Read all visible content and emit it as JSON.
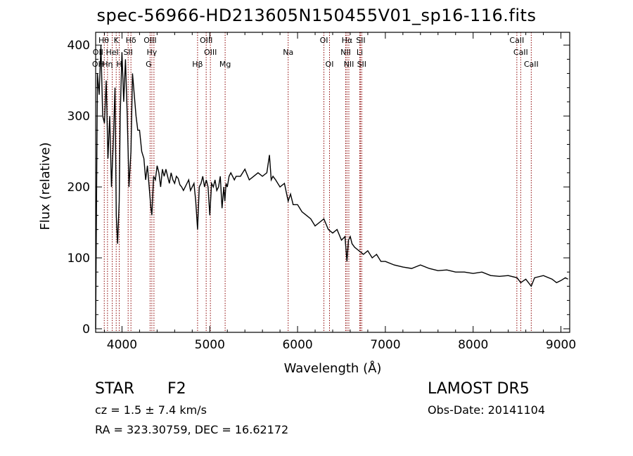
{
  "chart_data": {
    "type": "line",
    "title": "spec-56966-HD213605N150455V01_sp16-116.fits",
    "xlabel": "Wavelength (Å)",
    "ylabel": "Flux (relative)",
    "xlim": [
      3700,
      9100
    ],
    "ylim": [
      -5,
      418
    ],
    "xticks": [
      "4000",
      "5000",
      "6000",
      "7000",
      "8000",
      "9000"
    ],
    "yticks": [
      "0",
      "100",
      "200",
      "300",
      "400"
    ],
    "series": [
      {
        "x": [
          3700,
          3720,
          3740,
          3760,
          3780,
          3800,
          3820,
          3840,
          3860,
          3880,
          3900,
          3920,
          3935,
          3950,
          3968,
          3980,
          4000,
          4020,
          4040,
          4060,
          4080,
          4102,
          4120,
          4140,
          4160,
          4180,
          4200,
          4225,
          4250,
          4270,
          4290,
          4310,
          4330,
          4340,
          4360,
          4380,
          4400,
          4420,
          4440,
          4460,
          4480,
          4500,
          4520,
          4540,
          4560,
          4580,
          4600,
          4620,
          4640,
          4660,
          4680,
          4700,
          4720,
          4740,
          4760,
          4780,
          4800,
          4820,
          4840,
          4861,
          4880,
          4900,
          4920,
          4940,
          4960,
          4980,
          5000,
          5020,
          5040,
          5060,
          5080,
          5100,
          5120,
          5140,
          5160,
          5172,
          5185,
          5200,
          5220,
          5240,
          5260,
          5280,
          5300,
          5350,
          5400,
          5450,
          5500,
          5550,
          5600,
          5650,
          5680,
          5700,
          5720,
          5750,
          5800,
          5850,
          5893,
          5920,
          5950,
          6000,
          6050,
          6100,
          6150,
          6200,
          6250,
          6300,
          6350,
          6400,
          6450,
          6500,
          6540,
          6563,
          6580,
          6600,
          6620,
          6650,
          6700,
          6750,
          6800,
          6850,
          6900,
          6950,
          7000,
          7100,
          7200,
          7300,
          7400,
          7500,
          7600,
          7700,
          7800,
          7900,
          8000,
          8100,
          8200,
          8300,
          8400,
          8500,
          8542,
          8600,
          8662,
          8700,
          8800,
          8900,
          8950,
          9000,
          9050,
          9080
        ],
        "y": [
          0,
          360,
          330,
          400,
          300,
          290,
          350,
          240,
          300,
          200,
          260,
          340,
          160,
          120,
          180,
          300,
          390,
          320,
          380,
          300,
          200,
          250,
          360,
          330,
          300,
          280,
          280,
          250,
          240,
          210,
          230,
          200,
          170,
          160,
          215,
          210,
          230,
          220,
          200,
          225,
          215,
          225,
          215,
          205,
          220,
          210,
          205,
          215,
          212,
          203,
          200,
          195,
          200,
          205,
          210,
          195,
          200,
          205,
          180,
          140,
          200,
          205,
          215,
          200,
          210,
          200,
          160,
          205,
          200,
          210,
          195,
          200,
          215,
          170,
          200,
          180,
          205,
          200,
          215,
          220,
          215,
          210,
          215,
          215,
          225,
          210,
          215,
          220,
          215,
          220,
          245,
          210,
          215,
          210,
          200,
          205,
          180,
          190,
          175,
          175,
          165,
          160,
          155,
          145,
          150,
          155,
          140,
          135,
          140,
          125,
          130,
          95,
          125,
          130,
          120,
          115,
          110,
          105,
          110,
          100,
          105,
          95,
          95,
          90,
          87,
          85,
          90,
          85,
          82,
          83,
          80,
          80,
          78,
          80,
          75,
          74,
          75,
          72,
          65,
          70,
          60,
          72,
          75,
          70,
          65,
          68,
          72,
          70
        ]
      }
    ],
    "lines": [
      {
        "name": "Hθ",
        "x": 3798
      },
      {
        "name": "Hη",
        "x": 3835
      },
      {
        "name": "HeI",
        "x": 3889
      },
      {
        "name": "K",
        "x": 3934
      },
      {
        "name": "H",
        "x": 3969
      },
      {
        "name": "SII",
        "x": 4070
      },
      {
        "name": "Hδ",
        "x": 4102
      },
      {
        "name": "OIII",
        "x": 4320
      },
      {
        "name": "Hγ",
        "x": 4340
      },
      {
        "name": "G",
        "x": 4364
      },
      {
        "name": "Hβ",
        "x": 4861
      },
      {
        "name": "OIII",
        "x": 4959
      },
      {
        "name": "OIII",
        "x": 5007
      },
      {
        "name": "Mg",
        "x": 5175
      },
      {
        "name": "Na",
        "x": 5893
      },
      {
        "name": "OI",
        "x": 6300
      },
      {
        "name": "OI",
        "x": 6364
      },
      {
        "name": "Hα",
        "x": 6563
      },
      {
        "name": "NII",
        "x": 6548
      },
      {
        "name": "NII",
        "x": 6584
      },
      {
        "name": "SII",
        "x": 6717
      },
      {
        "name": "SII",
        "x": 6731
      },
      {
        "name": "Li",
        "x": 6708
      },
      {
        "name": "CaII",
        "x": 8498
      },
      {
        "name": "CaII",
        "x": 8542
      },
      {
        "name": "CaII",
        "x": 8662
      }
    ],
    "line_labels": [
      {
        "text": "Hθ",
        "row": 0,
        "x": 3792
      },
      {
        "text": "K",
        "row": 0,
        "x": 3934
      },
      {
        "text": "Hδ",
        "row": 0,
        "x": 4102
      },
      {
        "text": "OIII",
        "row": 0,
        "x": 4320
      },
      {
        "text": "OIII",
        "row": 0,
        "x": 4959
      },
      {
        "text": "OI",
        "row": 0,
        "x": 6300
      },
      {
        "text": "Hα",
        "row": 0,
        "x": 6563
      },
      {
        "text": "SII",
        "row": 0,
        "x": 6720
      },
      {
        "text": "CaII",
        "row": 0,
        "x": 8498
      },
      {
        "text": "OII",
        "row": 1,
        "x": 3727
      },
      {
        "text": "HeI",
        "row": 1,
        "x": 3889
      },
      {
        "text": "SII",
        "row": 1,
        "x": 4070
      },
      {
        "text": "Hγ",
        "row": 1,
        "x": 4340
      },
      {
        "text": "OIII",
        "row": 1,
        "x": 5007
      },
      {
        "text": "Na",
        "row": 1,
        "x": 5893
      },
      {
        "text": "NII",
        "row": 1,
        "x": 6548
      },
      {
        "text": "Li",
        "row": 1,
        "x": 6708
      },
      {
        "text": "CaII",
        "row": 1,
        "x": 8542
      },
      {
        "text": "OH",
        "row": 2,
        "x": 3727
      },
      {
        "text": "Hη",
        "row": 2,
        "x": 3835
      },
      {
        "text": "H",
        "row": 2,
        "x": 3969
      },
      {
        "text": "G",
        "row": 2,
        "x": 4304
      },
      {
        "text": "Hβ",
        "row": 2,
        "x": 4861
      },
      {
        "text": "Mg",
        "row": 2,
        "x": 5175
      },
      {
        "text": "OI",
        "row": 2,
        "x": 6364
      },
      {
        "text": "NII",
        "row": 2,
        "x": 6584
      },
      {
        "text": "SII",
        "row": 2,
        "x": 6731
      },
      {
        "text": "CaII",
        "row": 2,
        "x": 8662
      }
    ],
    "line_color": "#8b0000",
    "spectrum_color": "#000000"
  },
  "info": {
    "class": "STAR",
    "subclass": "F2",
    "survey": "LAMOST DR5",
    "cz": "cz = 1.5 ± 7.4 km/s",
    "obs_date": "Obs-Date: 20141104",
    "coords": "RA = 323.30759, DEC =  16.62172"
  }
}
